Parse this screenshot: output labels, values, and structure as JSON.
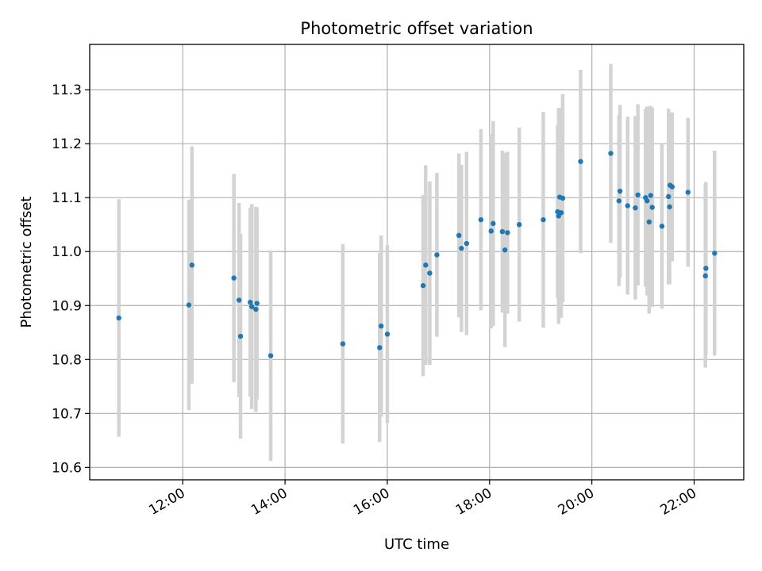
{
  "chart_data": {
    "type": "scatter",
    "title": "Photometric offset variation",
    "xlabel": "UTC time",
    "ylabel": "Photometric offset",
    "x_unit": "hour of day (UTC)",
    "xlim": [
      10.18,
      22.97
    ],
    "ylim": [
      10.577,
      11.384
    ],
    "x_ticks": [
      12,
      14,
      16,
      18,
      20,
      22
    ],
    "x_tick_labels": [
      "12:00",
      "14:00",
      "16:00",
      "18:00",
      "20:00",
      "22:00"
    ],
    "y_ticks": [
      10.6,
      10.7,
      10.8,
      10.9,
      11.0,
      11.1,
      11.2,
      11.3
    ],
    "y_tick_labels": [
      "10.6",
      "10.7",
      "10.8",
      "10.9",
      "11.0",
      "11.1",
      "11.2",
      "11.3"
    ],
    "grid": true,
    "legend": false,
    "colors": {
      "point": "#1f77b4",
      "errorbar": "#d3d3d3",
      "grid": "#b0b0b0"
    },
    "series": [
      {
        "x": [
          10.75,
          12.12,
          12.18,
          13.0,
          13.1,
          13.13,
          13.32,
          13.35,
          13.43,
          13.45,
          13.72,
          15.13,
          15.85,
          15.88,
          16.0,
          16.7,
          16.75,
          16.83,
          16.97,
          17.4,
          17.45,
          17.55,
          17.83,
          18.03,
          18.07,
          18.25,
          18.3,
          18.35,
          18.58,
          19.05,
          19.33,
          19.35,
          19.37,
          19.4,
          19.43,
          19.78,
          20.37,
          20.53,
          20.55,
          20.7,
          20.85,
          20.9,
          21.05,
          21.08,
          21.12,
          21.15,
          21.18,
          21.37,
          21.5,
          21.52,
          21.53,
          21.57,
          21.88,
          22.22,
          22.23,
          22.4
        ],
        "y": [
          10.877,
          10.901,
          10.975,
          10.951,
          10.91,
          10.843,
          10.906,
          10.898,
          10.893,
          10.904,
          10.807,
          10.829,
          10.822,
          10.862,
          10.847,
          10.937,
          10.975,
          10.96,
          10.994,
          11.03,
          11.006,
          11.015,
          11.059,
          11.038,
          11.052,
          11.037,
          11.003,
          11.035,
          11.05,
          11.059,
          11.074,
          11.066,
          11.101,
          11.072,
          11.099,
          11.167,
          11.182,
          11.094,
          11.112,
          11.085,
          11.081,
          11.105,
          11.1,
          11.094,
          11.055,
          11.104,
          11.082,
          11.047,
          11.102,
          11.083,
          11.123,
          11.12,
          11.11,
          10.955,
          10.969,
          10.997
        ],
        "err": [
          0.22,
          0.195,
          0.22,
          0.193,
          0.18,
          0.19,
          0.175,
          0.19,
          0.19,
          0.178,
          0.195,
          0.185,
          0.175,
          0.168,
          0.165,
          0.168,
          0.185,
          0.17,
          0.152,
          0.152,
          0.155,
          0.17,
          0.168,
          0.18,
          0.19,
          0.15,
          0.18,
          0.15,
          0.18,
          0.2,
          0.16,
          0.2,
          0.165,
          0.195,
          0.193,
          0.17,
          0.166,
          0.158,
          0.16,
          0.165,
          0.17,
          0.168,
          0.165,
          0.175,
          0.17,
          0.166,
          0.185,
          0.153,
          0.163,
          0.143,
          0.135,
          0.138,
          0.138,
          0.17,
          0.16,
          0.19
        ]
      }
    ]
  }
}
